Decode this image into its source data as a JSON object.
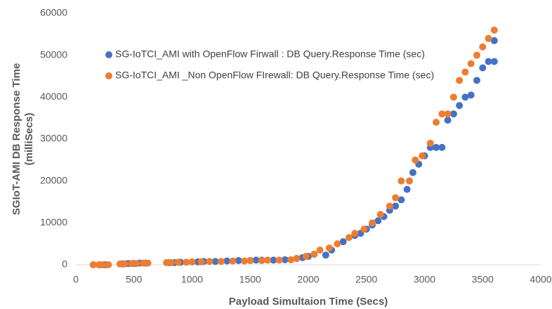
{
  "chart_data": {
    "type": "scatter",
    "xlabel": "Payload Simultaion Time (Secs)",
    "ylabel": [
      "SGIoT-AMI DB Response Time",
      "(milliSecs)"
    ],
    "xlim": [
      0,
      4000
    ],
    "xticks": [
      0,
      500,
      1000,
      1500,
      2000,
      2500,
      3000,
      3500,
      4000
    ],
    "ylim": [
      0,
      60000
    ],
    "yticks": [
      0,
      10000,
      20000,
      30000,
      40000,
      50000,
      60000
    ],
    "grid": false,
    "legend": "upper left",
    "series": [
      {
        "name": "SG-IoTCI_AMI with OpenFlow Firwall : DB Query.Response Time (sec)",
        "color": "#4472c4",
        "x": [
          150,
          200,
          250,
          400,
          450,
          500,
          550,
          600,
          800,
          850,
          900,
          1000,
          1050,
          1100,
          1200,
          1300,
          1400,
          1500,
          1550,
          1600,
          1700,
          1800,
          1900,
          1950,
          2000,
          2050,
          2150,
          2200,
          2300,
          2400,
          2450,
          2500,
          2550,
          2600,
          2650,
          2700,
          2750,
          2800,
          2850,
          2900,
          2950,
          3000,
          3050,
          3100,
          3150,
          3200,
          3250,
          3300,
          3350,
          3400,
          3450,
          3500,
          3550,
          3600,
          3600
        ],
        "values": [
          0,
          0,
          0,
          200,
          300,
          300,
          400,
          400,
          500,
          500,
          600,
          700,
          700,
          800,
          800,
          900,
          1000,
          1000,
          1100,
          1100,
          1100,
          1200,
          1500,
          1700,
          2000,
          2500,
          2300,
          3500,
          5500,
          7000,
          7500,
          8500,
          9500,
          10500,
          11500,
          13000,
          14000,
          15500,
          18000,
          22000,
          24000,
          26000,
          28000,
          28000,
          28000,
          34500,
          36000,
          38000,
          40000,
          40500,
          44000,
          47000,
          48500,
          48500,
          53500
        ]
      },
      {
        "name": "SG-IoTCI_AMI _Non OpenFlow FIrewall: DB Query.Response Time (sec)",
        "color": "#ed7d31",
        "x": [
          150,
          200,
          230,
          280,
          380,
          420,
          480,
          520,
          580,
          620,
          780,
          820,
          880,
          950,
          1000,
          1080,
          1150,
          1250,
          1350,
          1450,
          1500,
          1600,
          1650,
          1750,
          1850,
          1900,
          1980,
          2050,
          2100,
          2180,
          2250,
          2350,
          2400,
          2480,
          2550,
          2620,
          2700,
          2750,
          2800,
          2870,
          2920,
          2980,
          3050,
          3100,
          3150,
          3200,
          3250,
          3300,
          3350,
          3400,
          3450,
          3500,
          3550,
          3600
        ],
        "values": [
          0,
          0,
          0,
          0,
          200,
          200,
          300,
          300,
          400,
          400,
          500,
          500,
          600,
          600,
          700,
          700,
          800,
          800,
          900,
          900,
          1000,
          1000,
          1100,
          1100,
          1200,
          1500,
          2000,
          2500,
          3500,
          4000,
          5000,
          6500,
          7500,
          8500,
          10000,
          12000,
          14000,
          16000,
          20000,
          20000,
          25000,
          26000,
          29000,
          34000,
          36000,
          36000,
          40000,
          44000,
          46000,
          48000,
          50000,
          52000,
          54000,
          56000
        ]
      }
    ]
  }
}
